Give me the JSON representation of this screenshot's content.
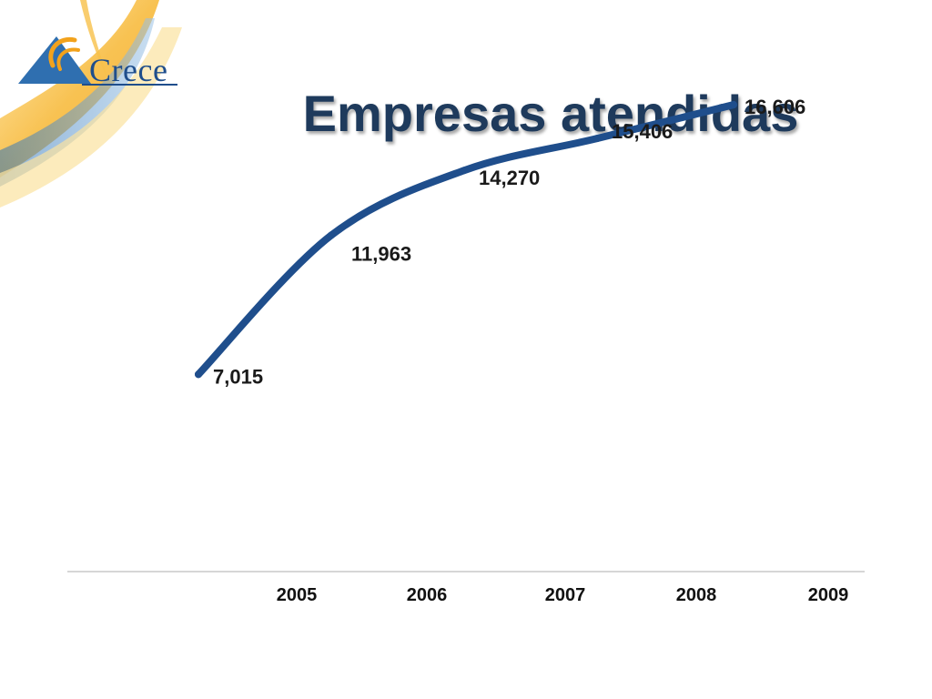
{
  "slide": {
    "title": "Empresas atendidas",
    "logo_text": "Crece"
  },
  "colors": {
    "line": "#1f4e8c",
    "title": "#1e3a5c",
    "axis": "#c8c8c8",
    "logo_blue": "#1f4e8c",
    "logo_orange": "#f2a21c"
  },
  "chart_data": {
    "type": "line",
    "title": "",
    "xlabel": "",
    "ylabel": "",
    "categories": [
      "2005",
      "2006",
      "2007",
      "2008",
      "2009"
    ],
    "series": [
      {
        "values": [
          7015,
          11963,
          14270,
          15406,
          16606
        ]
      }
    ],
    "data_labels": [
      "7,015",
      "11,963",
      "14,270",
      "15,406",
      "16,606"
    ],
    "ylim": [
      0,
      18000
    ],
    "grid": false,
    "legend": "none",
    "smooth": true
  }
}
